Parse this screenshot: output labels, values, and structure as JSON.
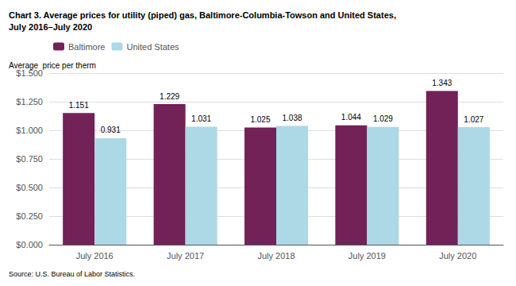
{
  "chart_data": {
    "type": "bar",
    "title": "Chart 3. Average prices for utility (piped) gas, Baltimore-Columbia-Towson and United States,\nJuly 2016–July 2020",
    "ylabel": "Average  price per therm",
    "annotations": [
      "Source: U.S. Bureau of Labor Statistics."
    ],
    "categories": [
      "July 2016",
      "July 2017",
      "July 2018",
      "July 2019",
      "July 2020"
    ],
    "series": [
      {
        "name": "Baltimore",
        "color": "#722257",
        "values": [
          1.151,
          1.229,
          1.025,
          1.044,
          1.343
        ]
      },
      {
        "name": "United States",
        "color": "#add8e6",
        "values": [
          0.931,
          1.031,
          1.038,
          1.029,
          1.027
        ]
      }
    ],
    "ylim": [
      0,
      1.5
    ],
    "yticks": [
      {
        "value": 0,
        "label": "$0.000"
      },
      {
        "value": 0.25,
        "label": "$0.250"
      },
      {
        "value": 0.5,
        "label": "$0.500"
      },
      {
        "value": 0.75,
        "label": "$0.750"
      },
      {
        "value": 1,
        "label": "$1.000"
      },
      {
        "value": 1.25,
        "label": "$1.250"
      },
      {
        "value": 1.5,
        "label": "$1.500"
      }
    ],
    "grid": true,
    "legend": "upper left",
    "data_labels": true
  }
}
